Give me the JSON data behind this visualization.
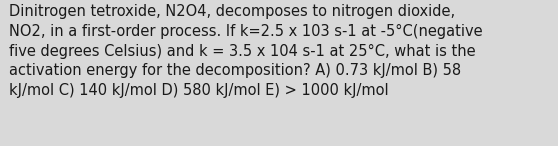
{
  "lines": [
    "Dinitrogen tetroxide, N2O4, decomposes to nitrogen dioxide,",
    "NO2, in a first-order process. If k=2.5 x 103 s-1 at -5°C(negative",
    "five degrees Celsius) and k = 3.5 x 104 s-1 at 25°C, what is the",
    "activation energy for the decomposition? A) 0.73 kJ/mol B) 58",
    "kJ/mol C) 140 kJ/mol D) 580 kJ/mol E) > 1000 kJ/mol"
  ],
  "background_color": "#d9d9d9",
  "text_color": "#1a1a1a",
  "font_size": 10.5,
  "fig_width": 5.58,
  "fig_height": 1.46,
  "dpi": 100
}
